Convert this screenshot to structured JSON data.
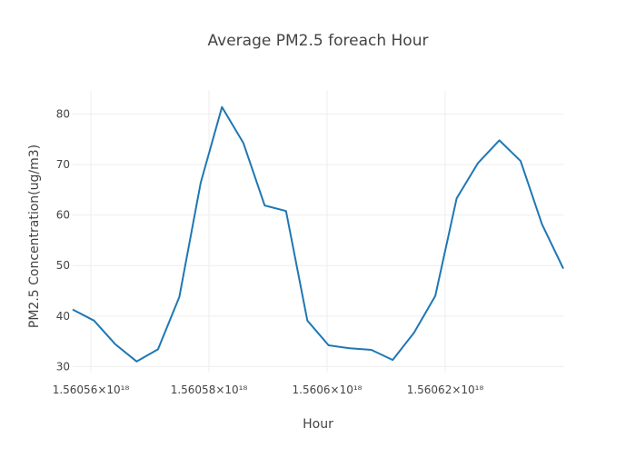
{
  "chart_data": {
    "type": "line",
    "title": "Average PM2.5 foreach Hour",
    "xlabel": "Hour",
    "ylabel": "PM2.5 Concentration(ug/m3)",
    "x_tick_labels": [
      "1.56056×10¹⁸",
      "1.56058×10¹⁸",
      "1.5606×10¹⁸",
      "1.56062×10¹⁸"
    ],
    "y_ticks": [
      30,
      40,
      50,
      60,
      70,
      80
    ],
    "ylim": [
      28.8,
      84.6
    ],
    "grid": true,
    "series": [
      {
        "color": "#1f77b4",
        "values": [
          41.3,
          39.1,
          34.4,
          31.0,
          33.4,
          43.8,
          66.4,
          81.4,
          74.3,
          61.9,
          60.8,
          39.1,
          34.2,
          33.6,
          33.3,
          31.3,
          36.7,
          44.0,
          63.3,
          70.3,
          74.8,
          70.7,
          58.2,
          49.4
        ]
      }
    ]
  }
}
